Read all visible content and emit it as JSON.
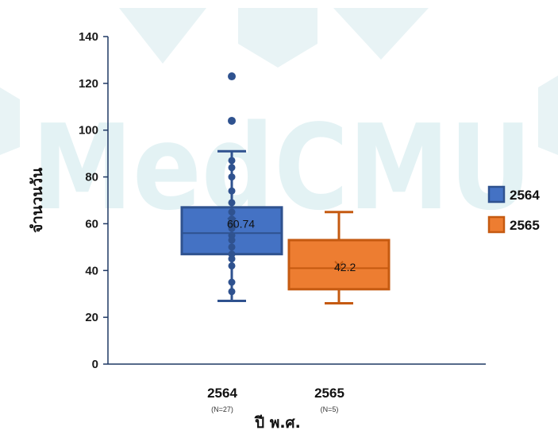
{
  "watermark_text": "MedCMU",
  "chart_data": {
    "type": "box",
    "title": "",
    "xlabel": "ปี พ.ศ.",
    "ylabel": "จำนวนวัน",
    "ylim": [
      0,
      140
    ],
    "yticks": [
      0,
      20,
      40,
      60,
      80,
      100,
      120,
      140
    ],
    "legend_position": "right",
    "series": [
      {
        "name": "2564",
        "category": "2564",
        "n_label": "(N=27)",
        "color": "#4472c4",
        "stroke": "#2f528f",
        "whisker_low": 27,
        "q1": 47,
        "median": 56,
        "q3": 67,
        "whisker_high": 91,
        "mean": 60.74,
        "mean_label": "60.74",
        "points": [
          123,
          104,
          87,
          84,
          80,
          74,
          69,
          65,
          62,
          60,
          58,
          55,
          53,
          50,
          47,
          45,
          42,
          35,
          31
        ],
        "outliers": [
          123,
          104
        ]
      },
      {
        "name": "2565",
        "category": "2565",
        "n_label": "(N=5)",
        "color": "#ed7d31",
        "stroke": "#c55a11",
        "whisker_low": 26,
        "q1": 32,
        "median": 41,
        "q3": 53,
        "whisker_high": 65,
        "mean": 42.2,
        "mean_label": "42.2",
        "points": [],
        "outliers": []
      }
    ]
  }
}
